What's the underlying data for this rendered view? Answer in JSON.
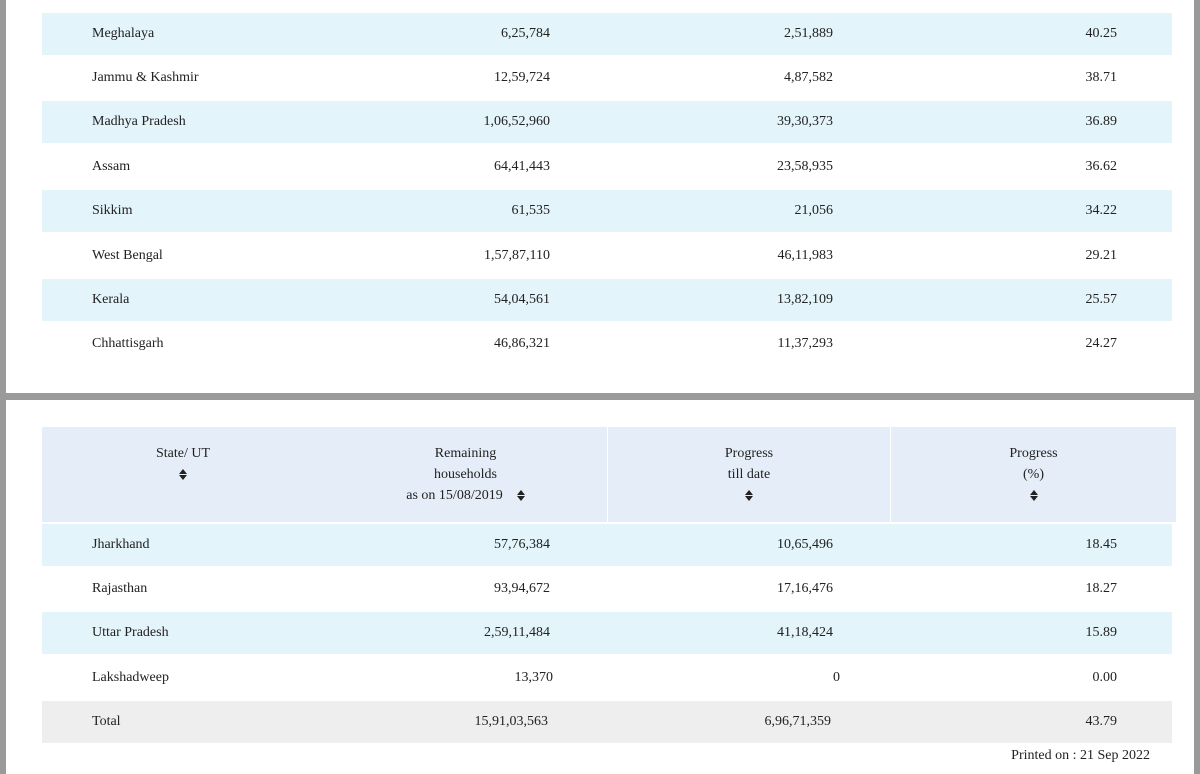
{
  "top_rows": [
    {
      "name": "Meghalaya",
      "remaining": "6,25,784",
      "progress": "2,51,889",
      "percent": "40.25"
    },
    {
      "name": "Jammu & Kashmir",
      "remaining": "12,59,724",
      "progress": "4,87,582",
      "percent": "38.71"
    },
    {
      "name": "Madhya Pradesh",
      "remaining": "1,06,52,960",
      "progress": "39,30,373",
      "percent": "36.89"
    },
    {
      "name": "Assam",
      "remaining": "64,41,443",
      "progress": "23,58,935",
      "percent": "36.62"
    },
    {
      "name": "Sikkim",
      "remaining": "61,535",
      "progress": "21,056",
      "percent": "34.22"
    },
    {
      "name": "West Bengal",
      "remaining": "1,57,87,110",
      "progress": "46,11,983",
      "percent": "29.21"
    },
    {
      "name": "Kerala",
      "remaining": "54,04,561",
      "progress": "13,82,109",
      "percent": "25.57"
    },
    {
      "name": "Chhattisgarh",
      "remaining": "46,86,321",
      "progress": "11,37,293",
      "percent": "24.27"
    }
  ],
  "header": {
    "state_line1": "State/ UT",
    "remaining_line1": "Remaining",
    "remaining_line2": "households",
    "remaining_line3": "as on 15/08/2019",
    "progress_line1": "Progress",
    "progress_line2": "till date",
    "percent_line1": "Progress",
    "percent_line2": "(%)"
  },
  "bottom_rows": [
    {
      "name": "Jharkhand",
      "remaining": "57,76,384",
      "progress": "10,65,496",
      "percent": "18.45"
    },
    {
      "name": "Rajasthan",
      "remaining": "93,94,672",
      "progress": "17,16,476",
      "percent": "18.27"
    },
    {
      "name": "Uttar Pradesh",
      "remaining": "2,59,11,484",
      "progress": "41,18,424",
      "percent": "15.89"
    },
    {
      "name": "Lakshadweep",
      "remaining": "13,370",
      "progress": "0",
      "percent": "0.00"
    }
  ],
  "total": {
    "name": "Total",
    "remaining": "15,91,03,563",
    "progress": "6,96,71,359",
    "percent": "43.79"
  },
  "printed_on": "Printed on : 21 Sep 2022",
  "colors": {
    "row_shade": "#e3f4fa",
    "header_bg": "#e5eef8",
    "total_bg": "#eeeeee",
    "page_gap": "#9a9a9a"
  }
}
